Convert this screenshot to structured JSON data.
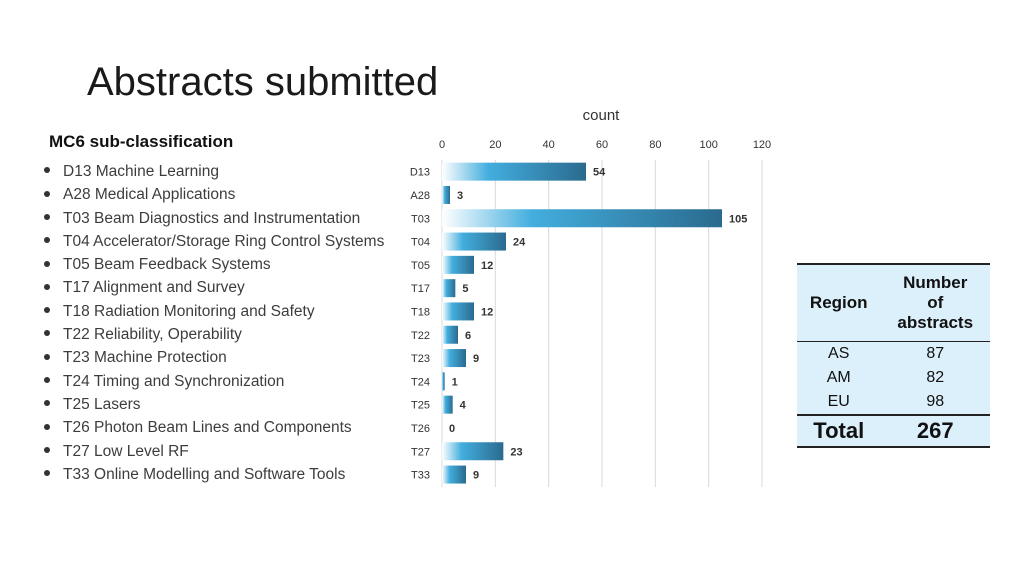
{
  "title": "Abstracts submitted",
  "subheading": "MC6 sub-classification",
  "list_items": [
    "D13 Machine Learning",
    "A28 Medical Applications",
    "T03 Beam Diagnostics and Instrumentation",
    "T04 Accelerator/Storage Ring Control Systems",
    "T05 Beam Feedback Systems",
    "T17 Alignment and Survey",
    "T18 Radiation Monitoring and Safety",
    "T22 Reliability, Operability",
    "T23 Machine Protection",
    "T24 Timing and Synchronization",
    "T25 Lasers",
    "T26 Photon Beam Lines and Components",
    "T27 Low Level RF",
    "T33 Online Modelling and Software Tools"
  ],
  "chart_data": {
    "type": "bar",
    "orientation": "horizontal",
    "xlabel": "count",
    "xaxis_position": "top",
    "xlim": [
      0,
      120
    ],
    "xticks": [
      0,
      20,
      40,
      60,
      80,
      100,
      120
    ],
    "grid": true,
    "categories": [
      "D13",
      "A28",
      "T03",
      "T04",
      "T05",
      "T17",
      "T18",
      "T22",
      "T23",
      "T24",
      "T25",
      "T26",
      "T27",
      "T33"
    ],
    "values": [
      54,
      3,
      105,
      24,
      12,
      5,
      12,
      6,
      9,
      1,
      4,
      0,
      23,
      9
    ],
    "colors": {
      "bar_dark": "#2a6a8e",
      "bar_mid": "#43aede",
      "bar_light": "#ffffff",
      "grid": "#d9d9d9",
      "text": "#333333"
    }
  },
  "region_table": {
    "headers": [
      "Region",
      "Number of abstracts"
    ],
    "header_lines": [
      "Number",
      "of",
      "abstracts"
    ],
    "rows": [
      {
        "region": "AS",
        "count": "87"
      },
      {
        "region": "AM",
        "count": "82"
      },
      {
        "region": "EU",
        "count": "98"
      }
    ],
    "total_label": "Total",
    "total_value": "267",
    "background": "#dcf0fb"
  }
}
